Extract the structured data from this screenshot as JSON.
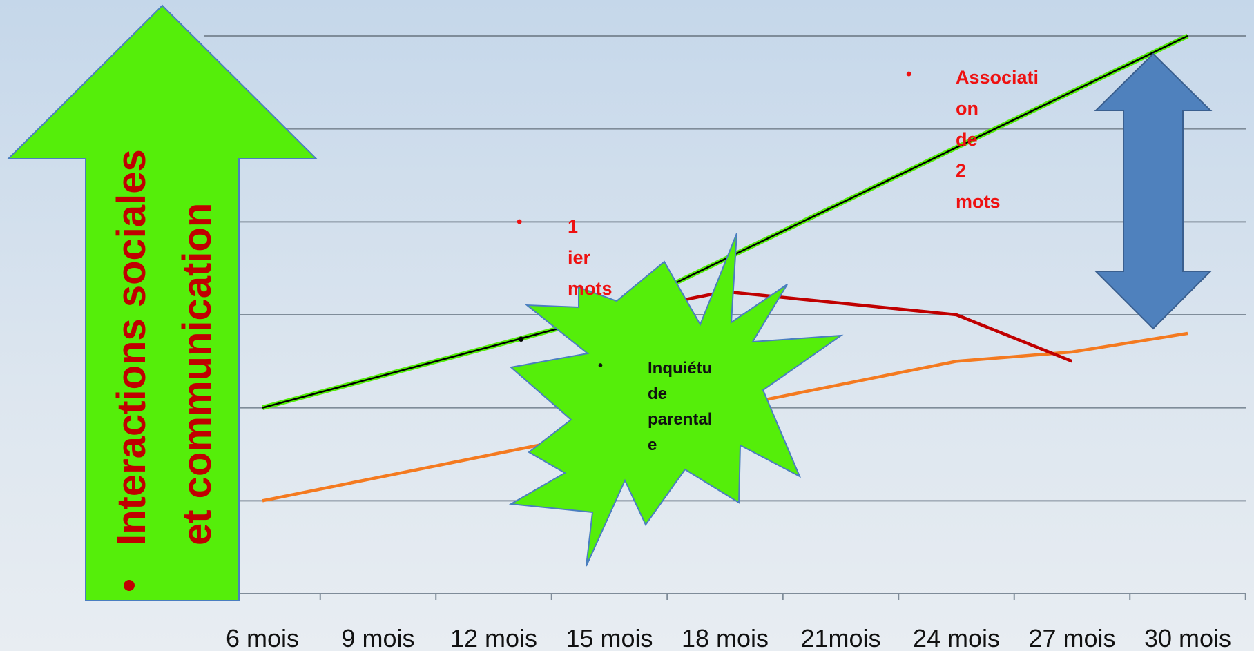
{
  "chart_data": {
    "type": "line",
    "categories": [
      "6 mois",
      "9 mois",
      "12 mois",
      "15 mois",
      "18 mois",
      "21mois",
      "24 mois",
      "27 mois",
      "30 mois"
    ],
    "ylim": [
      0,
      6
    ],
    "grid": true,
    "series": [
      {
        "color": "#000000",
        "values": [
          2,
          null,
          null,
          3,
          null,
          null,
          null,
          null,
          6
        ]
      },
      {
        "color": "#c00000",
        "values": [
          2,
          null,
          null,
          3,
          3.25,
          null,
          3,
          2.5,
          null
        ]
      },
      {
        "color": "#f47a20",
        "values": [
          1,
          null,
          null,
          null,
          null,
          null,
          2.5,
          2.6,
          2.8
        ]
      }
    ],
    "annotations": {
      "vertical_arrow_label": "Interactions sociales et communication",
      "first_words": "1 ier mots",
      "two_words": "Associati on de 2 mots",
      "parental_worry": "Inquiétu de parental e"
    }
  },
  "colors": {
    "arrow_green": "#55ee0a",
    "text_red": "#c00000",
    "note_red": "#ee1111",
    "double_arrow_blue": "#4f81bd"
  }
}
